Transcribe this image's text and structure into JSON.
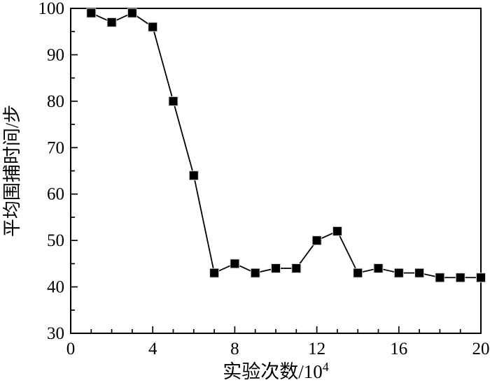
{
  "chart_data": {
    "type": "line",
    "title": "",
    "xlabel": "实验次数/10⁴",
    "xlabel_base": "实验次数/10",
    "xlabel_sup": "4",
    "ylabel": "平均围捕时间/步",
    "x": [
      1,
      2,
      3,
      4,
      5,
      6,
      7,
      8,
      9,
      10,
      11,
      12,
      13,
      14,
      15,
      16,
      17,
      18,
      19,
      20
    ],
    "series": [
      {
        "name": "平均围捕时间",
        "values": [
          99,
          97,
          99,
          96,
          80,
          64,
          43,
          45,
          43,
          44,
          44,
          50,
          52,
          43,
          44,
          43,
          43,
          42,
          42,
          42
        ]
      }
    ],
    "xlim": [
      0,
      20
    ],
    "ylim": [
      30,
      100
    ],
    "x_major_ticks": [
      0,
      4,
      8,
      12,
      16,
      20
    ],
    "x_minor_step": 1,
    "y_major_ticks": [
      30,
      40,
      50,
      60,
      70,
      80,
      90,
      100
    ],
    "y_minor_step": 5,
    "grid": "off",
    "legend": "none",
    "marker": "filled-square",
    "line_color": "#000000",
    "marker_color": "#000000",
    "axis_color": "#000000",
    "background_color": "#ffffff"
  }
}
